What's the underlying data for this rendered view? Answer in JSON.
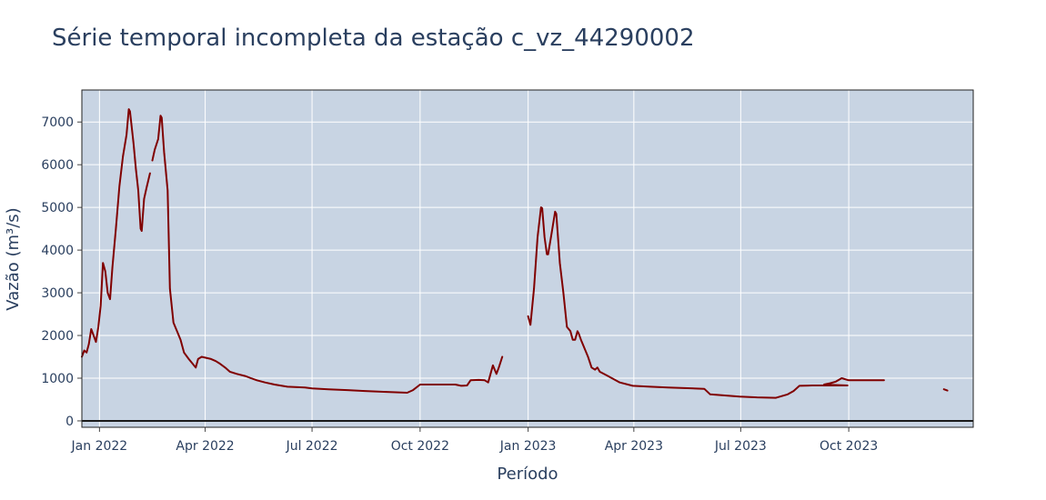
{
  "chart_data": {
    "type": "line",
    "title": "Série temporal incompleta da estação c_vz_44290002",
    "xlabel": "Período",
    "ylabel": "Vazão (m³/s)",
    "xlim": [
      "2021-12-17",
      "2024-01-15"
    ],
    "ylim": [
      -150,
      7750
    ],
    "x_ticks": [
      {
        "date": "2022-01-01",
        "label": "Jan 2022"
      },
      {
        "date": "2022-04-01",
        "label": "Apr 2022"
      },
      {
        "date": "2022-07-01",
        "label": "Jul 2022"
      },
      {
        "date": "2022-10-01",
        "label": "Oct 2022"
      },
      {
        "date": "2023-01-01",
        "label": "Jan 2023"
      },
      {
        "date": "2023-04-01",
        "label": "Apr 2023"
      },
      {
        "date": "2023-07-01",
        "label": "Jul 2023"
      },
      {
        "date": "2023-10-01",
        "label": "Oct 2023"
      }
    ],
    "y_ticks": [
      0,
      1000,
      2000,
      3000,
      4000,
      5000,
      6000,
      7000
    ],
    "grid": true,
    "colors": {
      "line": "#800000",
      "plot_bg": "#c8d4e3",
      "grid": "#ffffff",
      "zero_line": "#1a1a1a"
    },
    "series": [
      {
        "segments": [
          [
            [
              "2021-12-17",
              1500
            ],
            [
              "2021-12-19",
              1650
            ],
            [
              "2021-12-21",
              1600
            ],
            [
              "2021-12-23",
              1800
            ],
            [
              "2021-12-25",
              2150
            ],
            [
              "2021-12-27",
              2000
            ],
            [
              "2021-12-29",
              1850
            ],
            [
              "2021-12-31",
              2200
            ],
            [
              "2022-01-02",
              2700
            ],
            [
              "2022-01-04",
              3700
            ],
            [
              "2022-01-06",
              3500
            ],
            [
              "2022-01-08",
              3000
            ],
            [
              "2022-01-10",
              2850
            ],
            [
              "2022-01-12",
              3600
            ],
            [
              "2022-01-15",
              4500
            ],
            [
              "2022-01-18",
              5500
            ],
            [
              "2022-01-21",
              6200
            ],
            [
              "2022-01-24",
              6700
            ],
            [
              "2022-01-26",
              7300
            ],
            [
              "2022-01-27",
              7250
            ],
            [
              "2022-01-28",
              7000
            ],
            [
              "2022-01-30",
              6500
            ],
            [
              "2022-02-01",
              5900
            ],
            [
              "2022-02-03",
              5400
            ],
            [
              "2022-02-05",
              4500
            ],
            [
              "2022-02-06",
              4450
            ],
            [
              "2022-02-08",
              5200
            ],
            [
              "2022-02-10",
              5450
            ],
            [
              "2022-02-13",
              5800
            ]
          ],
          [
            [
              "2022-02-15",
              6100
            ],
            [
              "2022-02-17",
              6350
            ],
            [
              "2022-02-20",
              6600
            ],
            [
              "2022-02-22",
              7150
            ],
            [
              "2022-02-23",
              7100
            ],
            [
              "2022-02-25",
              6300
            ],
            [
              "2022-02-28",
              5400
            ],
            [
              "2022-03-02",
              3100
            ],
            [
              "2022-03-05",
              2300
            ],
            [
              "2022-03-08",
              2100
            ],
            [
              "2022-03-11",
              1900
            ],
            [
              "2022-03-14",
              1600
            ],
            [
              "2022-03-18",
              1450
            ],
            [
              "2022-03-21",
              1350
            ],
            [
              "2022-03-24",
              1250
            ],
            [
              "2022-03-26",
              1450
            ],
            [
              "2022-03-29",
              1500
            ],
            [
              "2022-04-06",
              1450
            ],
            [
              "2022-04-10",
              1400
            ],
            [
              "2022-04-13",
              1350
            ],
            [
              "2022-04-18",
              1250
            ],
            [
              "2022-04-22",
              1150
            ],
            [
              "2022-04-28",
              1100
            ],
            [
              "2022-05-05",
              1050
            ],
            [
              "2022-05-10",
              1000
            ],
            [
              "2022-05-15",
              950
            ],
            [
              "2022-05-22",
              900
            ],
            [
              "2022-05-30",
              850
            ],
            [
              "2022-06-10",
              800
            ],
            [
              "2022-06-25",
              780
            ],
            [
              "2022-07-01",
              760
            ],
            [
              "2022-07-15",
              740
            ],
            [
              "2022-07-31",
              720
            ],
            [
              "2022-08-15",
              700
            ],
            [
              "2022-08-31",
              680
            ],
            [
              "2022-09-10",
              670
            ],
            [
              "2022-09-20",
              660
            ],
            [
              "2022-09-25",
              720
            ],
            [
              "2022-10-01",
              850
            ],
            [
              "2022-10-31",
              850
            ],
            [
              "2022-11-05",
              820
            ],
            [
              "2022-11-10",
              830
            ],
            [
              "2022-11-13",
              950
            ],
            [
              "2022-11-20",
              960
            ],
            [
              "2022-11-25",
              950
            ],
            [
              "2022-11-28",
              900
            ],
            [
              "2022-11-30",
              1100
            ],
            [
              "2022-12-02",
              1300
            ],
            [
              "2022-12-05",
              1100
            ],
            [
              "2022-12-07",
              1250
            ],
            [
              "2022-12-10",
              1500
            ]
          ],
          [
            [
              "2023-01-01",
              2450
            ],
            [
              "2023-01-03",
              2250
            ],
            [
              "2023-01-06",
              3100
            ],
            [
              "2023-01-09",
              4300
            ],
            [
              "2023-01-12",
              5000
            ],
            [
              "2023-01-13",
              4980
            ],
            [
              "2023-01-15",
              4300
            ],
            [
              "2023-01-17",
              3900
            ],
            [
              "2023-01-18",
              3900
            ],
            [
              "2023-01-21",
              4400
            ],
            [
              "2023-01-24",
              4900
            ],
            [
              "2023-01-25",
              4850
            ],
            [
              "2023-01-28",
              3700
            ],
            [
              "2023-01-31",
              3000
            ],
            [
              "2023-02-03",
              2200
            ],
            [
              "2023-02-06",
              2100
            ],
            [
              "2023-02-08",
              1900
            ],
            [
              "2023-02-10",
              1900
            ],
            [
              "2023-02-12",
              2100
            ],
            [
              "2023-02-13",
              2050
            ],
            [
              "2023-02-15",
              1900
            ],
            [
              "2023-02-18",
              1700
            ],
            [
              "2023-02-21",
              1500
            ],
            [
              "2023-02-24",
              1250
            ],
            [
              "2023-02-27",
              1200
            ],
            [
              "2023-03-01",
              1250
            ],
            [
              "2023-03-03",
              1150
            ],
            [
              "2023-03-10",
              1050
            ],
            [
              "2023-03-20",
              900
            ],
            [
              "2023-03-31",
              820
            ],
            [
              "2023-04-15",
              800
            ],
            [
              "2023-04-30",
              780
            ],
            [
              "2023-05-31",
              750
            ],
            [
              "2023-06-05",
              620
            ],
            [
              "2023-06-15",
              600
            ],
            [
              "2023-06-30",
              570
            ],
            [
              "2023-07-15",
              550
            ],
            [
              "2023-07-31",
              540
            ],
            [
              "2023-08-05",
              580
            ],
            [
              "2023-08-10",
              620
            ],
            [
              "2023-08-15",
              700
            ],
            [
              "2023-08-20",
              820
            ],
            [
              "2023-08-31",
              830
            ],
            [
              "2023-09-30",
              830
            ],
            [
              "2023-09-10",
              850
            ],
            [
              "2023-09-15",
              880
            ],
            [
              "2023-09-20",
              920
            ],
            [
              "2023-09-25",
              1000
            ],
            [
              "2023-09-30",
              960
            ],
            [
              "2023-10-01",
              950
            ],
            [
              "2023-10-31",
              950
            ]
          ],
          [
            [
              "2023-12-21",
              740
            ],
            [
              "2023-12-24",
              710
            ]
          ]
        ]
      }
    ]
  }
}
